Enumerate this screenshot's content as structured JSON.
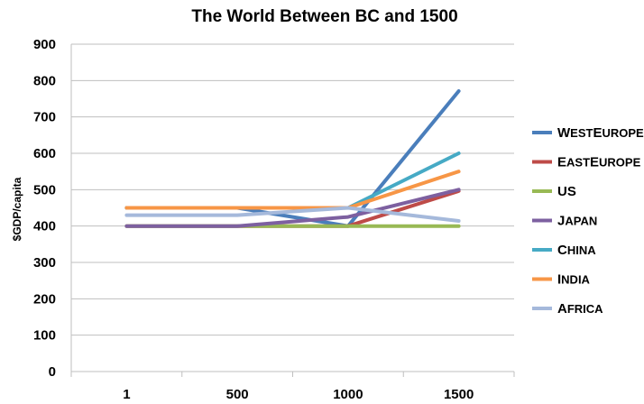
{
  "chart_data": {
    "type": "line",
    "title": "The World Between BC and 1500",
    "xlabel": "",
    "ylabel": "$GDP/capita",
    "categories": [
      "1",
      "500",
      "1000",
      "1500"
    ],
    "ylim": [
      0,
      900
    ],
    "yticks": [
      0,
      100,
      200,
      300,
      400,
      500,
      600,
      700,
      800,
      900
    ],
    "grid": true,
    "legend_position": "right",
    "series": [
      {
        "name": "WestEurope",
        "color": "#4A7EBB",
        "values": [
          450,
          450,
          400,
          771
        ]
      },
      {
        "name": "EastEurope",
        "color": "#BE4B48",
        "values": [
          400,
          400,
          400,
          496
        ]
      },
      {
        "name": "US",
        "color": "#98B954",
        "values": [
          400,
          400,
          400,
          400
        ]
      },
      {
        "name": "Japan",
        "color": "#7D60A0",
        "values": [
          400,
          400,
          425,
          500
        ]
      },
      {
        "name": "China",
        "color": "#46AAC5",
        "values": [
          450,
          450,
          450,
          600
        ]
      },
      {
        "name": "India",
        "color": "#F79646",
        "values": [
          450,
          450,
          450,
          550
        ]
      },
      {
        "name": "Africa",
        "color": "#A5B9DB",
        "values": [
          430,
          430,
          450,
          414
        ]
      }
    ]
  }
}
